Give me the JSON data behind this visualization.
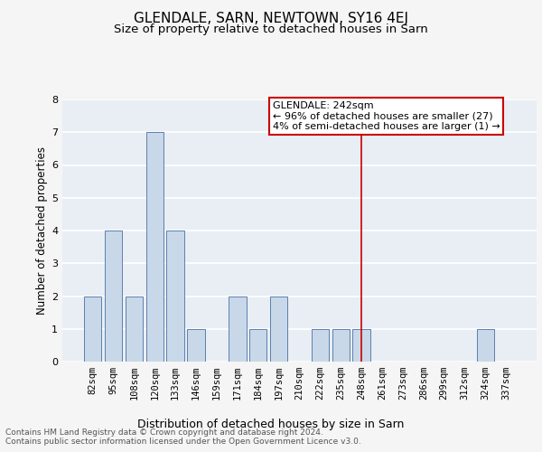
{
  "title": "GLENDALE, SARN, NEWTOWN, SY16 4EJ",
  "subtitle": "Size of property relative to detached houses in Sarn",
  "xlabel": "Distribution of detached houses by size in Sarn",
  "ylabel": "Number of detached properties",
  "categories": [
    "82sqm",
    "95sqm",
    "108sqm",
    "120sqm",
    "133sqm",
    "146sqm",
    "159sqm",
    "171sqm",
    "184sqm",
    "197sqm",
    "210sqm",
    "222sqm",
    "235sqm",
    "248sqm",
    "261sqm",
    "273sqm",
    "286sqm",
    "299sqm",
    "312sqm",
    "324sqm",
    "337sqm"
  ],
  "values": [
    2,
    4,
    2,
    7,
    4,
    1,
    0,
    2,
    1,
    2,
    0,
    1,
    1,
    1,
    0,
    0,
    0,
    0,
    0,
    1,
    0
  ],
  "bar_color": "#c8d8e8",
  "bar_edge_color": "#4a6fa5",
  "ylim": [
    0,
    8
  ],
  "yticks": [
    0,
    1,
    2,
    3,
    4,
    5,
    6,
    7,
    8
  ],
  "vline_x_index": 13,
  "vline_color": "#cc0000",
  "annotation_text": "GLENDALE: 242sqm\n← 96% of detached houses are smaller (27)\n4% of semi-detached houses are larger (1) →",
  "annotation_box_facecolor": "#ffffff",
  "annotation_box_edgecolor": "#cc0000",
  "footer_text": "Contains HM Land Registry data © Crown copyright and database right 2024.\nContains public sector information licensed under the Open Government Licence v3.0.",
  "bg_color": "#e8eef4",
  "grid_color": "#ffffff",
  "fig_bg_color": "#f5f5f5",
  "title_fontsize": 11,
  "subtitle_fontsize": 9.5,
  "xlabel_fontsize": 9,
  "ylabel_fontsize": 8.5,
  "tick_fontsize": 7.5,
  "annotation_fontsize": 8,
  "footer_fontsize": 6.5
}
